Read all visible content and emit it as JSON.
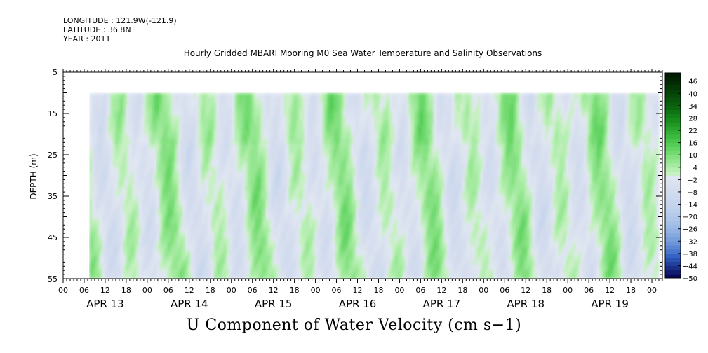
{
  "header": {
    "longitude": "LONGITUDE : 121.9W(-121.9)",
    "latitude": "LATITUDE : 36.8N",
    "year": "YEAR : 2011"
  },
  "chart_data": {
    "type": "heatmap",
    "title": "Hourly Gridded MBARI Mooring M0 Sea Water Temperature and Salinity Observations",
    "subtitle": "U Component of Water Velocity (cm s−1)",
    "ylabel": "DEPTH (m)",
    "xlabel": "",
    "y_axis": {
      "range": [
        5,
        55
      ],
      "inverted": true,
      "ticks": [
        5,
        15,
        25,
        35,
        45,
        55
      ]
    },
    "x_axis": {
      "range_hours": [
        0,
        171
      ],
      "hour_tick_labels": [
        "00",
        "06",
        "12",
        "18",
        "00",
        "06",
        "12",
        "18",
        "00",
        "06",
        "12",
        "18",
        "00",
        "06",
        "12",
        "18",
        "00",
        "06",
        "12",
        "18",
        "00",
        "06",
        "12",
        "18",
        "00",
        "06",
        "12",
        "18",
        "00"
      ],
      "day_labels": [
        "APR 13",
        "APR 14",
        "APR 15",
        "APR 16",
        "APR 17",
        "APR 18",
        "APR 19"
      ]
    },
    "data_extent": {
      "hours": [
        7.5,
        170
      ],
      "depth": [
        10,
        55
      ]
    },
    "colorbar": {
      "tick_labels": [
        "46",
        "40",
        "34",
        "28",
        "22",
        "16",
        "10",
        "4",
        "−2",
        "−8",
        "−14",
        "−20",
        "−26",
        "−32",
        "−38",
        "−44",
        "−50"
      ],
      "levels": [
        -50,
        -48,
        -46,
        -44,
        -42,
        -40,
        -38,
        -36,
        -34,
        -32,
        -30,
        -28,
        -26,
        -24,
        -22,
        -20,
        -18,
        -16,
        -14,
        -12,
        -10,
        -8,
        -6,
        -4,
        -2,
        0,
        2,
        4,
        6,
        8,
        10,
        12,
        14,
        16,
        18,
        20,
        22,
        24,
        26,
        28,
        30,
        32,
        34,
        36,
        38,
        40,
        42,
        44,
        46,
        48,
        50
      ],
      "colors": [
        "#0a0a5a",
        "#121c70",
        "#1a2e86",
        "#22409c",
        "#2a52b2",
        "#3664c4",
        "#4a76cc",
        "#5c86d2",
        "#6c94d8",
        "#7aa0dc",
        "#86aae0",
        "#92b2e4",
        "#9cbae6",
        "#a6c0e8",
        "#aec6ea",
        "#b6cbec",
        "#bccfec",
        "#c2d2ec",
        "#c7d5ec",
        "#ccd8ee",
        "#d0dbee",
        "#d4ddee",
        "#d8e0f0",
        "#dce3f0",
        "#e0e6f2",
        "#c8f0c4",
        "#b4eeb0",
        "#a4eaa0",
        "#94e690",
        "#84e080",
        "#72da70",
        "#62d462",
        "#54cc56",
        "#48c44a",
        "#3cba40",
        "#32b036",
        "#28a42c",
        "#209824",
        "#1a8c1e",
        "#148018",
        "#107414",
        "#0c6810",
        "#0a5e0e",
        "#08540c",
        "#064a0a",
        "#054008",
        "#043606",
        "#032c04",
        "#022402",
        "#021c02"
      ]
    }
  }
}
